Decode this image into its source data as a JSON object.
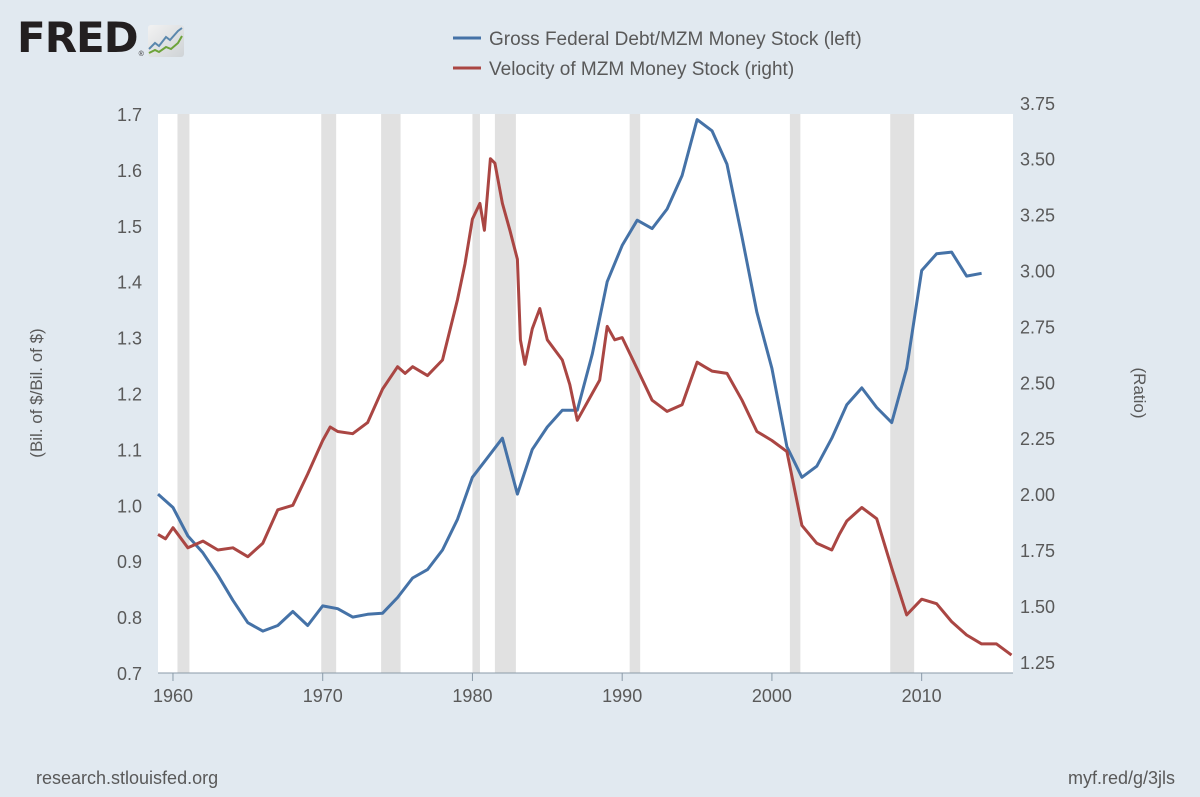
{
  "logo": {
    "text": "FRED",
    "registered": "®"
  },
  "footer": {
    "left": "research.stlouisfed.org",
    "right": "myf.red/g/3jls"
  },
  "colors": {
    "background": "#e1e9f0",
    "plot": "#ffffff",
    "recession": "#e1e1e1",
    "blue": "#4572a7",
    "red": "#aa4643"
  },
  "chart_data": {
    "type": "line",
    "title": "",
    "legend_placement": "top",
    "x_range": [
      1959.0,
      2016.1
    ],
    "x_ticks": [
      "1960",
      "1970",
      "1980",
      "1990",
      "2000",
      "2010"
    ],
    "x_tick_values": [
      1960,
      1970,
      1980,
      1990,
      2000,
      2010
    ],
    "left_axis": {
      "label": "(Bil. of $/Bil. of $)",
      "range": [
        0.7,
        1.7
      ],
      "ticks": [
        "1.7",
        "1.6",
        "1.5",
        "1.4",
        "1.3",
        "1.2",
        "1.1",
        "1.0",
        "0.9",
        "0.8",
        "0.7"
      ],
      "tick_values": [
        1.7,
        1.6,
        1.5,
        1.4,
        1.3,
        1.2,
        1.1,
        1.0,
        0.9,
        0.8,
        0.7
      ]
    },
    "right_axis": {
      "label": "(Ratio)",
      "range": [
        1.2,
        3.7
      ],
      "ticks": [
        "3.75",
        "3.50",
        "3.25",
        "3.00",
        "2.75",
        "2.50",
        "2.25",
        "2.00",
        "1.75",
        "1.50",
        "1.25"
      ],
      "tick_values": [
        3.75,
        3.5,
        3.25,
        3.0,
        2.75,
        2.5,
        2.25,
        2.0,
        1.75,
        1.5,
        1.25
      ]
    },
    "recessions": [
      [
        1960.3,
        1961.1
      ],
      [
        1969.9,
        1970.9
      ],
      [
        1973.9,
        1975.2
      ],
      [
        1980.0,
        1980.5
      ],
      [
        1981.5,
        1982.9
      ],
      [
        1990.5,
        1991.2
      ],
      [
        2001.2,
        2001.9
      ],
      [
        2007.9,
        2009.5
      ]
    ],
    "series": [
      {
        "name": "Gross Federal Debt/MZM Money Stock (left)",
        "axis": "left",
        "color": "#4572a7",
        "x": [
          1959,
          1960,
          1961,
          1962,
          1963,
          1964,
          1965,
          1966,
          1967,
          1968,
          1969,
          1970,
          1971,
          1972,
          1973,
          1974,
          1975,
          1976,
          1977,
          1978,
          1979,
          1980,
          1981,
          1982,
          1983,
          1984,
          1985,
          1986,
          1987,
          1988,
          1989,
          1990,
          1991,
          1992,
          1993,
          1994,
          1995,
          1996,
          1997,
          1998,
          1999,
          2000,
          2001,
          2002,
          2003,
          2004,
          2005,
          2006,
          2007,
          2008,
          2009,
          2010,
          2011,
          2012,
          2013,
          2014
        ],
        "y": [
          1.02,
          0.996,
          0.945,
          0.915,
          0.875,
          0.83,
          0.79,
          0.775,
          0.785,
          0.81,
          0.785,
          0.82,
          0.815,
          0.8,
          0.805,
          0.807,
          0.835,
          0.87,
          0.885,
          0.92,
          0.975,
          1.05,
          1.085,
          1.12,
          1.02,
          1.1,
          1.14,
          1.17,
          1.17,
          1.27,
          1.4,
          1.465,
          1.51,
          1.495,
          1.53,
          1.59,
          1.69,
          1.67,
          1.61,
          1.48,
          1.345,
          1.245,
          1.105,
          1.05,
          1.07,
          1.12,
          1.18,
          1.21,
          1.175,
          1.148,
          1.245,
          1.42,
          1.45,
          1.453,
          1.41,
          1.415
        ]
      },
      {
        "name": "Velocity of MZM Money Stock (right)",
        "axis": "right",
        "color": "#aa4643",
        "x": [
          1959,
          1959.5,
          1960,
          1961,
          1962,
          1963,
          1964,
          1965,
          1966,
          1967,
          1968,
          1969,
          1970,
          1970.5,
          1971,
          1972,
          1973,
          1974,
          1975,
          1975.5,
          1976,
          1977,
          1978,
          1979,
          1979.5,
          1980,
          1980.5,
          1980.8,
          1981.2,
          1981.5,
          1982,
          1982.5,
          1983,
          1983.2,
          1983.5,
          1984,
          1984.5,
          1985,
          1986,
          1986.5,
          1987,
          1988,
          1988.5,
          1989,
          1989.5,
          1990,
          1991,
          1992,
          1993,
          1994,
          1995,
          1995.5,
          1996,
          1997,
          1998,
          1999,
          2000,
          2001,
          2002,
          2003,
          2004,
          2004.5,
          2005,
          2006,
          2007,
          2008,
          2009,
          2010,
          2011,
          2012,
          2013,
          2014,
          2015,
          2016
        ],
        "y": [
          1.82,
          1.8,
          1.85,
          1.76,
          1.79,
          1.75,
          1.76,
          1.72,
          1.78,
          1.93,
          1.95,
          2.09,
          2.24,
          2.3,
          2.28,
          2.27,
          2.32,
          2.47,
          2.57,
          2.54,
          2.57,
          2.53,
          2.6,
          2.87,
          3.03,
          3.23,
          3.3,
          3.18,
          3.5,
          3.48,
          3.3,
          3.18,
          3.05,
          2.69,
          2.58,
          2.74,
          2.83,
          2.69,
          2.6,
          2.49,
          2.33,
          2.45,
          2.51,
          2.75,
          2.69,
          2.7,
          2.56,
          2.42,
          2.37,
          2.4,
          2.59,
          2.57,
          2.55,
          2.54,
          2.42,
          2.28,
          2.24,
          2.19,
          1.86,
          1.78,
          1.75,
          1.82,
          1.88,
          1.94,
          1.89,
          1.67,
          1.46,
          1.53,
          1.51,
          1.43,
          1.37,
          1.33,
          1.33,
          1.28
        ]
      }
    ]
  }
}
